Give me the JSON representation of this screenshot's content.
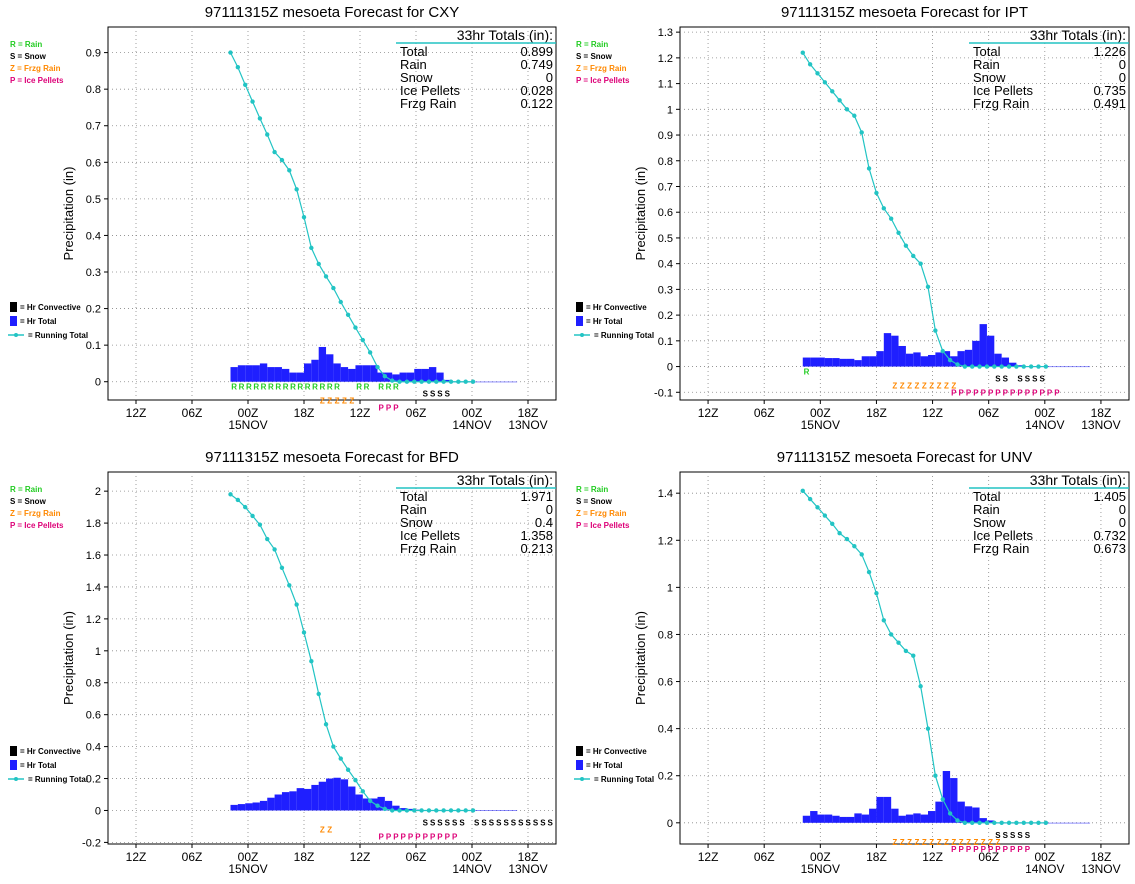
{
  "colors": {
    "rain": "#22cc22",
    "snow": "#000000",
    "frzg_rain": "#ff8800",
    "ice_pellets": "#dd0077",
    "hr_total": "#1f1fff",
    "hr_convective": "#000000",
    "running_total": "#22c4c4",
    "grid": "#888888"
  },
  "legend": {
    "rain": "R = Rain",
    "snow": "S = Snow",
    "frzg_rain": "Z = Frzg Rain",
    "ice_pellets": "P = Ice Pellets",
    "hr_convective": "= Hr Convective",
    "hr_total": "= Hr Total",
    "running_total": "= Running Total"
  },
  "common": {
    "ylabel": "Precipitation (in)",
    "totals_header": "33hr Totals (in):",
    "x_tick_labels": [
      "12Z",
      "06Z",
      "00Z",
      "18Z",
      "12Z",
      "06Z",
      "00Z",
      "18Z"
    ],
    "x_date_labels": [
      "15NOV",
      "14NOV",
      "13NOV"
    ],
    "total_labels": [
      "Total",
      "Rain",
      "Snow",
      "Ice Pellets",
      "Frzg Rain"
    ]
  },
  "chart_data": [
    {
      "type": "bar",
      "title": "97111315Z mesoeta Forecast for CXY",
      "show_ice_in_legend": true,
      "ylim": [
        -0.05,
        0.97
      ],
      "yticks": [
        0,
        0.1,
        0.2,
        0.3,
        0.4,
        0.5,
        0.6,
        0.7,
        0.8,
        0.9
      ],
      "totals": [
        "0.899",
        "0.749",
        "0",
        "0.028",
        "0.122"
      ],
      "hr_total": [
        0.04,
        0.045,
        0.045,
        0.045,
        0.05,
        0.04,
        0.04,
        0.035,
        0.025,
        0.025,
        0.05,
        0.06,
        0.095,
        0.075,
        0.05,
        0.04,
        0.035,
        0.045,
        0.045,
        0.045,
        0.025,
        0.025,
        0.02,
        0.025,
        0.025,
        0.035,
        0.035,
        0.04,
        0.025,
        0.005,
        0,
        0,
        0,
        0,
        0,
        0,
        0,
        0,
        0
      ],
      "running_total": [
        0.9,
        0.86,
        0.812,
        0.766,
        0.72,
        0.676,
        0.628,
        0.606,
        0.578,
        0.526,
        0.45,
        0.366,
        0.322,
        0.288,
        0.256,
        0.218,
        0.183,
        0.148,
        0.114,
        0.08,
        0.04,
        0.015,
        0.003,
        0,
        0,
        0,
        0,
        0,
        0,
        0,
        0,
        0,
        0,
        0
      ],
      "ptype": {
        "rain": "RRRRRRRRRRRRRRR  RR RRR",
        "snow": "SSSS",
        "frzg_rain": "ZZZZZ",
        "ice_pellets": "PPP"
      }
    },
    {
      "type": "bar",
      "title": "97111315Z mesoeta Forecast for IPT",
      "show_ice_in_legend": true,
      "ylim": [
        -0.13,
        1.32
      ],
      "yticks": [
        -0.1,
        0,
        0.1,
        0.2,
        0.3,
        0.4,
        0.5,
        0.6,
        0.7,
        0.8,
        0.9,
        1,
        1.1,
        1.2,
        1.3
      ],
      "totals": [
        "1.226",
        "0",
        "0",
        "0.735",
        "0.491"
      ],
      "hr_total": [
        0.035,
        0.035,
        0.035,
        0.033,
        0.033,
        0.03,
        0.03,
        0.025,
        0.04,
        0.04,
        0.06,
        0.13,
        0.12,
        0.08,
        0.05,
        0.055,
        0.04,
        0.045,
        0.055,
        0.06,
        0.04,
        0.06,
        0.065,
        0.1,
        0.165,
        0.12,
        0.05,
        0.035,
        0.015,
        0.005,
        0,
        0,
        0,
        0,
        0,
        0,
        0,
        0,
        0
      ],
      "running_total": [
        1.22,
        1.175,
        1.14,
        1.105,
        1.07,
        1.035,
        1.0,
        0.975,
        0.91,
        0.77,
        0.675,
        0.615,
        0.575,
        0.52,
        0.47,
        0.43,
        0.4,
        0.31,
        0.14,
        0.06,
        0.025,
        0.008,
        0,
        0,
        0,
        0,
        0,
        0,
        0,
        0,
        0,
        0,
        0,
        0
      ],
      "ptype": {
        "rain": "R",
        "snow": "SS SSSS",
        "frzg_rain": "ZZZZZZZZZ",
        "ice_pellets": "PPPPPPPPPPPPPPP"
      }
    },
    {
      "type": "bar",
      "title": "97111315Z mesoeta Forecast for BFD",
      "show_ice_in_legend": true,
      "ylim": [
        -0.21,
        2.12
      ],
      "yticks": [
        -0.2,
        0,
        0.2,
        0.4,
        0.6,
        0.8,
        1,
        1.2,
        1.4,
        1.6,
        1.8,
        2
      ],
      "totals": [
        "1.971",
        "0",
        "0.4",
        "1.358",
        "0.213"
      ],
      "hr_total": [
        0.035,
        0.04,
        0.045,
        0.05,
        0.06,
        0.08,
        0.1,
        0.115,
        0.12,
        0.14,
        0.135,
        0.16,
        0.18,
        0.2,
        0.205,
        0.195,
        0.15,
        0.1,
        0.075,
        0.075,
        0.085,
        0.06,
        0.03,
        0.015,
        0.01,
        0.005,
        0,
        0,
        0,
        0,
        0,
        0,
        0,
        0,
        0,
        0,
        0,
        0,
        0
      ],
      "running_total": [
        1.98,
        1.945,
        1.9,
        1.845,
        1.79,
        1.7,
        1.635,
        1.52,
        1.41,
        1.29,
        1.115,
        0.935,
        0.73,
        0.54,
        0.4,
        0.325,
        0.255,
        0.19,
        0.12,
        0.06,
        0.03,
        0.01,
        0,
        0,
        0,
        0,
        0,
        0,
        0,
        0,
        0,
        0,
        0,
        0
      ],
      "ptype": {
        "rain": "",
        "snow": "SSSSSS SSSSSSSSSSSSSSS",
        "frzg_rain": "ZZ",
        "ice_pellets": "PPPPPPPPPPP"
      }
    },
    {
      "type": "bar",
      "title": "97111315Z mesoeta Forecast for UNV",
      "show_ice_in_legend": true,
      "ylim": [
        -0.09,
        1.49
      ],
      "yticks": [
        0,
        0.2,
        0.4,
        0.6,
        0.8,
        1,
        1.2,
        1.4
      ],
      "totals": [
        "1.405",
        "0",
        "0",
        "0.732",
        "0.673"
      ],
      "hr_total": [
        0.03,
        0.05,
        0.035,
        0.035,
        0.03,
        0.025,
        0.025,
        0.04,
        0.035,
        0.06,
        0.11,
        0.11,
        0.06,
        0.03,
        0.035,
        0.04,
        0.035,
        0.05,
        0.09,
        0.22,
        0.19,
        0.09,
        0.07,
        0.065,
        0.02,
        0.01,
        0,
        0,
        0,
        0,
        0,
        0,
        0,
        0,
        0,
        0,
        0,
        0,
        0
      ],
      "running_total": [
        1.41,
        1.375,
        1.34,
        1.305,
        1.27,
        1.23,
        1.205,
        1.175,
        1.14,
        1.065,
        0.975,
        0.86,
        0.8,
        0.765,
        0.73,
        0.71,
        0.58,
        0.4,
        0.2,
        0.1,
        0.04,
        0.01,
        0,
        0,
        0,
        0,
        0,
        0,
        0,
        0,
        0,
        0,
        0,
        0
      ],
      "ptype": {
        "rain": "",
        "snow": "SSSSS",
        "frzg_rain": "ZZZZZZZZZZZZZZZ",
        "ice_pellets": "PPPPPPPPPPP"
      }
    }
  ]
}
